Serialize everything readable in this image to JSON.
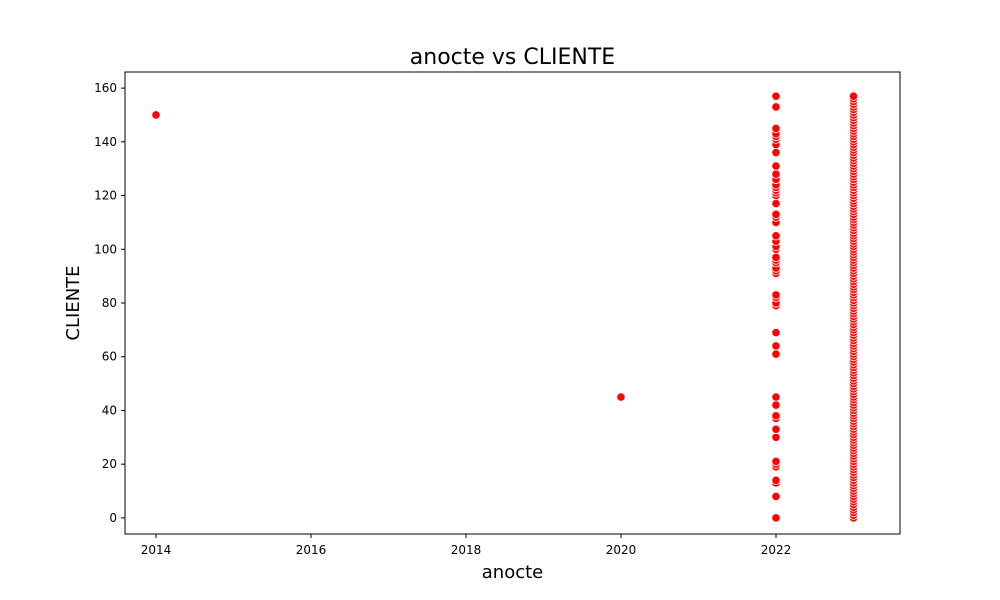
{
  "chart_data": {
    "type": "scatter",
    "title": "anocte vs CLIENTE",
    "xlabel": "anocte",
    "ylabel": "CLIENTE",
    "xlim": [
      2013.6,
      2023.6
    ],
    "ylim": [
      -6,
      166
    ],
    "xticks": [
      2014,
      2016,
      2018,
      2020,
      2022
    ],
    "yticks": [
      0,
      20,
      40,
      60,
      80,
      100,
      120,
      140,
      160
    ],
    "grid": false,
    "legend": "none",
    "marker_color": "#ff0000",
    "marker_edge_color": "#ffffff",
    "series": [
      {
        "x": [
          2014,
          2020
        ],
        "y": [
          150,
          45
        ]
      },
      {
        "x_value": 2022,
        "y": [
          0,
          8,
          13,
          14,
          19,
          20,
          21,
          30,
          33,
          37,
          38,
          42,
          45,
          61,
          64,
          69,
          79,
          80,
          82,
          83,
          91,
          92,
          93,
          95,
          96,
          97,
          100,
          101,
          103,
          105,
          110,
          112,
          113,
          117,
          120,
          121,
          122,
          123,
          124,
          126,
          128,
          131,
          136,
          139,
          141,
          142,
          143,
          145,
          153,
          157
        ]
      },
      {
        "x_value": 2023,
        "y": [
          0,
          1,
          2,
          3,
          4,
          5,
          6,
          7,
          8,
          9,
          10,
          11,
          12,
          13,
          14,
          15,
          16,
          17,
          18,
          19,
          20,
          21,
          22,
          23,
          24,
          25,
          26,
          27,
          28,
          29,
          30,
          31,
          32,
          33,
          34,
          35,
          36,
          37,
          38,
          39,
          40,
          41,
          42,
          43,
          44,
          45,
          46,
          47,
          48,
          49,
          50,
          51,
          52,
          53,
          54,
          55,
          56,
          57,
          58,
          59,
          60,
          61,
          62,
          63,
          64,
          65,
          66,
          67,
          68,
          69,
          70,
          71,
          72,
          73,
          74,
          75,
          76,
          77,
          78,
          79,
          80,
          81,
          82,
          83,
          84,
          85,
          86,
          87,
          88,
          89,
          90,
          91,
          92,
          93,
          94,
          95,
          96,
          97,
          98,
          99,
          100,
          101,
          102,
          103,
          104,
          105,
          106,
          107,
          108,
          109,
          110,
          111,
          112,
          113,
          114,
          115,
          116,
          117,
          118,
          119,
          120,
          121,
          122,
          123,
          124,
          125,
          126,
          127,
          128,
          129,
          130,
          131,
          132,
          133,
          134,
          135,
          136,
          137,
          138,
          139,
          140,
          141,
          142,
          143,
          144,
          145,
          146,
          147,
          148,
          149,
          150,
          151,
          152,
          153,
          154,
          155,
          156,
          157
        ]
      }
    ]
  }
}
